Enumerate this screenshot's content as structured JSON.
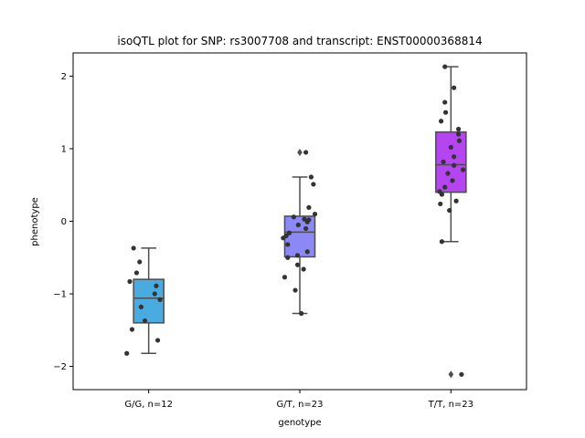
{
  "chart_data": {
    "type": "box",
    "title": "isoQTL plot for SNP: rs3007708 and transcript: ENST00000368814",
    "xlabel": "genotype",
    "ylabel": "phenotype",
    "ylim": [
      -2.32,
      2.32
    ],
    "yticks": [
      -2,
      -1,
      0,
      1,
      2
    ],
    "ytick_labels": [
      "−2",
      "−1",
      "0",
      "1",
      "2"
    ],
    "grid": false,
    "categories": [
      "G/G, n=12",
      "G/T, n=23",
      "T/T, n=23"
    ],
    "colors": [
      "#4aabe0",
      "#8c88f5",
      "#b445f0"
    ],
    "boxes": [
      {
        "q1": -1.4,
        "median": -1.06,
        "q3": -0.8,
        "whisker_low": -1.82,
        "whisker_high": -0.37,
        "outliers": []
      },
      {
        "q1": -0.49,
        "median": -0.15,
        "q3": 0.07,
        "whisker_low": -1.27,
        "whisker_high": 0.61,
        "outliers": [
          0.95
        ]
      },
      {
        "q1": 0.4,
        "median": 0.78,
        "q3": 1.23,
        "whisker_low": -0.28,
        "whisker_high": 2.13,
        "outliers": [
          -2.11
        ]
      }
    ],
    "points": [
      [
        {
          "x": -0.2,
          "y": -0.37
        },
        {
          "x": -0.12,
          "y": -0.56
        },
        {
          "x": -0.16,
          "y": -0.71
        },
        {
          "x": -0.25,
          "y": -0.83
        },
        {
          "x": 0.1,
          "y": -0.89
        },
        {
          "x": 0.15,
          "y": -1.08
        },
        {
          "x": -0.1,
          "y": -1.18
        },
        {
          "x": -0.05,
          "y": -1.37
        },
        {
          "x": -0.22,
          "y": -1.49
        },
        {
          "x": 0.12,
          "y": -1.64
        },
        {
          "x": -0.29,
          "y": -1.82
        },
        {
          "x": 0.08,
          "y": -1.0
        }
      ],
      [
        {
          "x": 0.08,
          "y": 0.95
        },
        {
          "x": 0.15,
          "y": 0.61
        },
        {
          "x": 0.18,
          "y": 0.51
        },
        {
          "x": 0.12,
          "y": 0.19
        },
        {
          "x": 0.2,
          "y": 0.1
        },
        {
          "x": -0.08,
          "y": 0.06
        },
        {
          "x": 0.06,
          "y": 0.03
        },
        {
          "x": 0.1,
          "y": -0.01
        },
        {
          "x": -0.02,
          "y": -0.05
        },
        {
          "x": 0.08,
          "y": -0.1
        },
        {
          "x": -0.14,
          "y": -0.16
        },
        {
          "x": -0.22,
          "y": -0.23
        },
        {
          "x": -0.18,
          "y": -0.2
        },
        {
          "x": -0.16,
          "y": -0.32
        },
        {
          "x": 0.1,
          "y": -0.42
        },
        {
          "x": -0.03,
          "y": -0.47
        },
        {
          "x": -0.16,
          "y": -0.5
        },
        {
          "x": -0.03,
          "y": -0.6
        },
        {
          "x": 0.05,
          "y": -0.66
        },
        {
          "x": -0.2,
          "y": -0.77
        },
        {
          "x": -0.06,
          "y": -0.95
        },
        {
          "x": 0.02,
          "y": -1.27
        },
        {
          "x": 0.12,
          "y": 0.02
        }
      ],
      [
        {
          "x": -0.08,
          "y": 2.13
        },
        {
          "x": 0.04,
          "y": 1.84
        },
        {
          "x": -0.08,
          "y": 1.64
        },
        {
          "x": -0.07,
          "y": 1.5
        },
        {
          "x": -0.13,
          "y": 1.38
        },
        {
          "x": 0.1,
          "y": 1.27
        },
        {
          "x": 0.11,
          "y": 1.11
        },
        {
          "x": 0.0,
          "y": 1.02
        },
        {
          "x": 0.04,
          "y": 0.89
        },
        {
          "x": -0.1,
          "y": 0.82
        },
        {
          "x": 0.04,
          "y": 0.77
        },
        {
          "x": 0.16,
          "y": 0.71
        },
        {
          "x": -0.04,
          "y": 0.66
        },
        {
          "x": 0.02,
          "y": 0.56
        },
        {
          "x": -0.08,
          "y": 0.47
        },
        {
          "x": -0.15,
          "y": 0.41
        },
        {
          "x": -0.12,
          "y": 0.37
        },
        {
          "x": 0.07,
          "y": 0.28
        },
        {
          "x": -0.14,
          "y": 0.24
        },
        {
          "x": -0.02,
          "y": 0.15
        },
        {
          "x": -0.12,
          "y": -0.28
        },
        {
          "x": 0.14,
          "y": -2.11
        },
        {
          "x": 0.1,
          "y": 1.2
        }
      ]
    ]
  }
}
